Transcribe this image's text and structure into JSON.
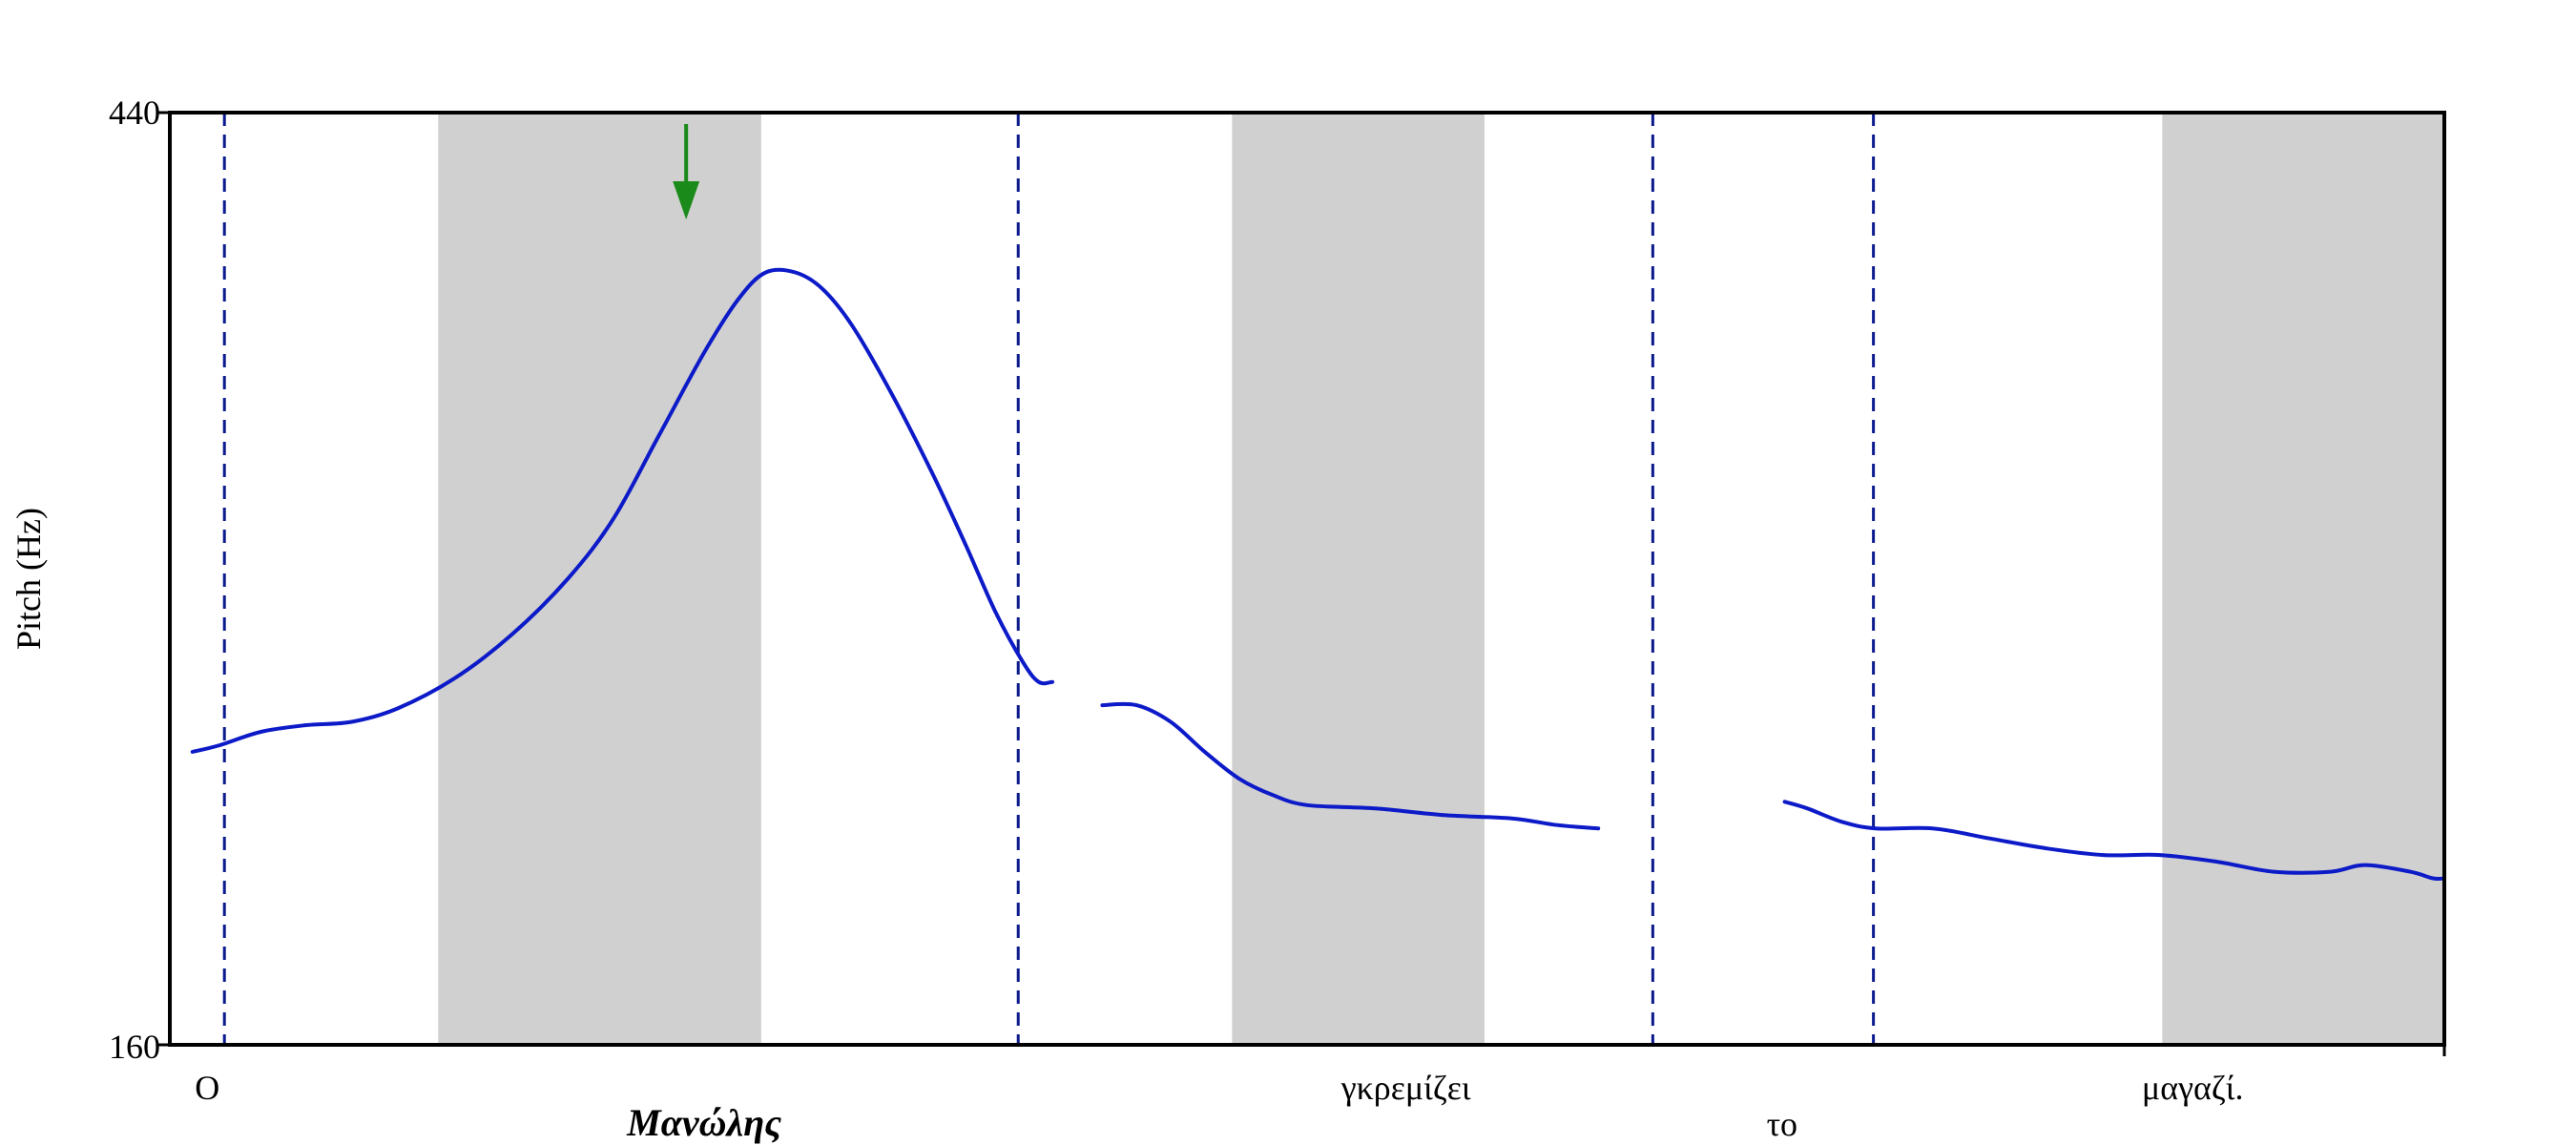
{
  "chart_data": {
    "type": "line",
    "ylabel": "Pitch (Hz)",
    "ylim": [
      160,
      440
    ],
    "yticks": [
      "440",
      "160"
    ],
    "xlim": [
      0,
      1
    ],
    "series": [
      {
        "segments": [
          [
            [
              0.01,
              248
            ],
            [
              0.022,
              250
            ],
            [
              0.04,
              254
            ],
            [
              0.06,
              256
            ],
            [
              0.08,
              257
            ],
            [
              0.1,
              261
            ],
            [
              0.125,
              270
            ],
            [
              0.15,
              283
            ],
            [
              0.175,
              300
            ],
            [
              0.195,
              318
            ],
            [
              0.215,
              343
            ],
            [
              0.235,
              368
            ],
            [
              0.25,
              384
            ],
            [
              0.262,
              392
            ],
            [
              0.275,
              392
            ],
            [
              0.287,
              387
            ],
            [
              0.3,
              376
            ],
            [
              0.317,
              356
            ],
            [
              0.335,
              332
            ],
            [
              0.35,
              310
            ],
            [
              0.363,
              290
            ],
            [
              0.375,
              275
            ],
            [
              0.382,
              269
            ],
            [
              0.388,
              269
            ]
          ],
          [
            [
              0.41,
              262
            ],
            [
              0.425,
              262
            ],
            [
              0.44,
              257
            ],
            [
              0.455,
              248
            ],
            [
              0.47,
              240
            ],
            [
              0.485,
              235
            ],
            [
              0.5,
              232
            ],
            [
              0.53,
              231
            ],
            [
              0.56,
              229
            ],
            [
              0.59,
              228
            ],
            [
              0.61,
              226
            ],
            [
              0.628,
              225
            ]
          ],
          [
            [
              0.71,
              233
            ],
            [
              0.72,
              231
            ],
            [
              0.735,
              227
            ],
            [
              0.75,
              225
            ],
            [
              0.775,
              225
            ],
            [
              0.8,
              222
            ],
            [
              0.825,
              219
            ],
            [
              0.85,
              217
            ],
            [
              0.875,
              217
            ],
            [
              0.9,
              215
            ],
            [
              0.925,
              212
            ],
            [
              0.95,
              212
            ],
            [
              0.965,
              214
            ],
            [
              0.985,
              212
            ],
            [
              0.995,
              210
            ],
            [
              1.0,
              210
            ]
          ]
        ]
      }
    ],
    "shaded_regions": [
      [
        0.118,
        0.26
      ],
      [
        0.467,
        0.578
      ],
      [
        0.876,
        1.0
      ]
    ],
    "boundaries": [
      0.024,
      0.373,
      0.652,
      0.749
    ],
    "peak_marker": {
      "x": 0.227,
      "color": "#1a8a1a"
    },
    "words": [
      {
        "text": "O",
        "x": 0.011,
        "row": 1,
        "style": "normal"
      },
      {
        "text": "Μανώλης",
        "x": 0.201,
        "row": 2,
        "style": "focus"
      },
      {
        "text": "γκρεμίζει",
        "x": 0.515,
        "row": 1,
        "style": "normal"
      },
      {
        "text": "το",
        "x": 0.702,
        "row": 2,
        "style": "normal"
      },
      {
        "text": "μαγαζί.",
        "x": 0.867,
        "row": 1,
        "style": "normal"
      }
    ],
    "colors": {
      "curve": "#0c1ac8",
      "boundary": "#0b1a8c",
      "shade": "#d0d0d0",
      "frame": "#000000",
      "marker": "#1a8a1a"
    }
  }
}
